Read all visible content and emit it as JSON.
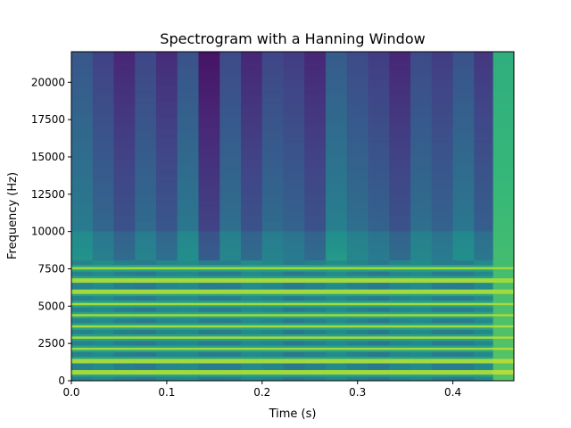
{
  "chart_data": {
    "type": "heatmap",
    "title": "Spectrogram with a Hanning Window",
    "xlabel": "Time (s)",
    "ylabel": "Frequency (Hz)",
    "xlim": [
      0.0,
      0.464
    ],
    "ylim": [
      0,
      22050
    ],
    "xticks": [
      {
        "value": 0.0,
        "label": "0.0"
      },
      {
        "value": 0.1,
        "label": "0.1"
      },
      {
        "value": 0.2,
        "label": "0.2"
      },
      {
        "value": 0.3,
        "label": "0.3"
      },
      {
        "value": 0.4,
        "label": "0.4"
      }
    ],
    "yticks": [
      {
        "value": 0,
        "label": "0"
      },
      {
        "value": 2500,
        "label": "2500"
      },
      {
        "value": 5000,
        "label": "5000"
      },
      {
        "value": 7500,
        "label": "7500"
      },
      {
        "value": 10000,
        "label": "10000"
      },
      {
        "value": 12500,
        "label": "12500"
      },
      {
        "value": 15000,
        "label": "15000"
      },
      {
        "value": 17500,
        "label": "17500"
      },
      {
        "value": 20000,
        "label": "20000"
      }
    ],
    "colormap": "viridis",
    "time_columns": [
      0.0,
      0.0222,
      0.0444,
      0.0667,
      0.0889,
      0.1111,
      0.1333,
      0.1556,
      0.1778,
      0.2,
      0.2222,
      0.2444,
      0.2667,
      0.2889,
      0.3111,
      0.3333,
      0.3556,
      0.3778,
      0.4,
      0.4222,
      0.4422,
      0.4644
    ],
    "column_levels": [
      0.32,
      0.22,
      0.12,
      0.24,
      0.14,
      0.3,
      0.05,
      0.26,
      0.12,
      0.24,
      0.2,
      0.12,
      0.34,
      0.26,
      0.2,
      0.12,
      0.26,
      0.2,
      0.3,
      0.18,
      0.72
    ],
    "harmonic_lines_hz": [
      500,
      1300,
      2100,
      2850,
      3600,
      4350,
      5100,
      5900,
      6700,
      7500
    ],
    "high_freq_cutoff_hz": 8000
  }
}
